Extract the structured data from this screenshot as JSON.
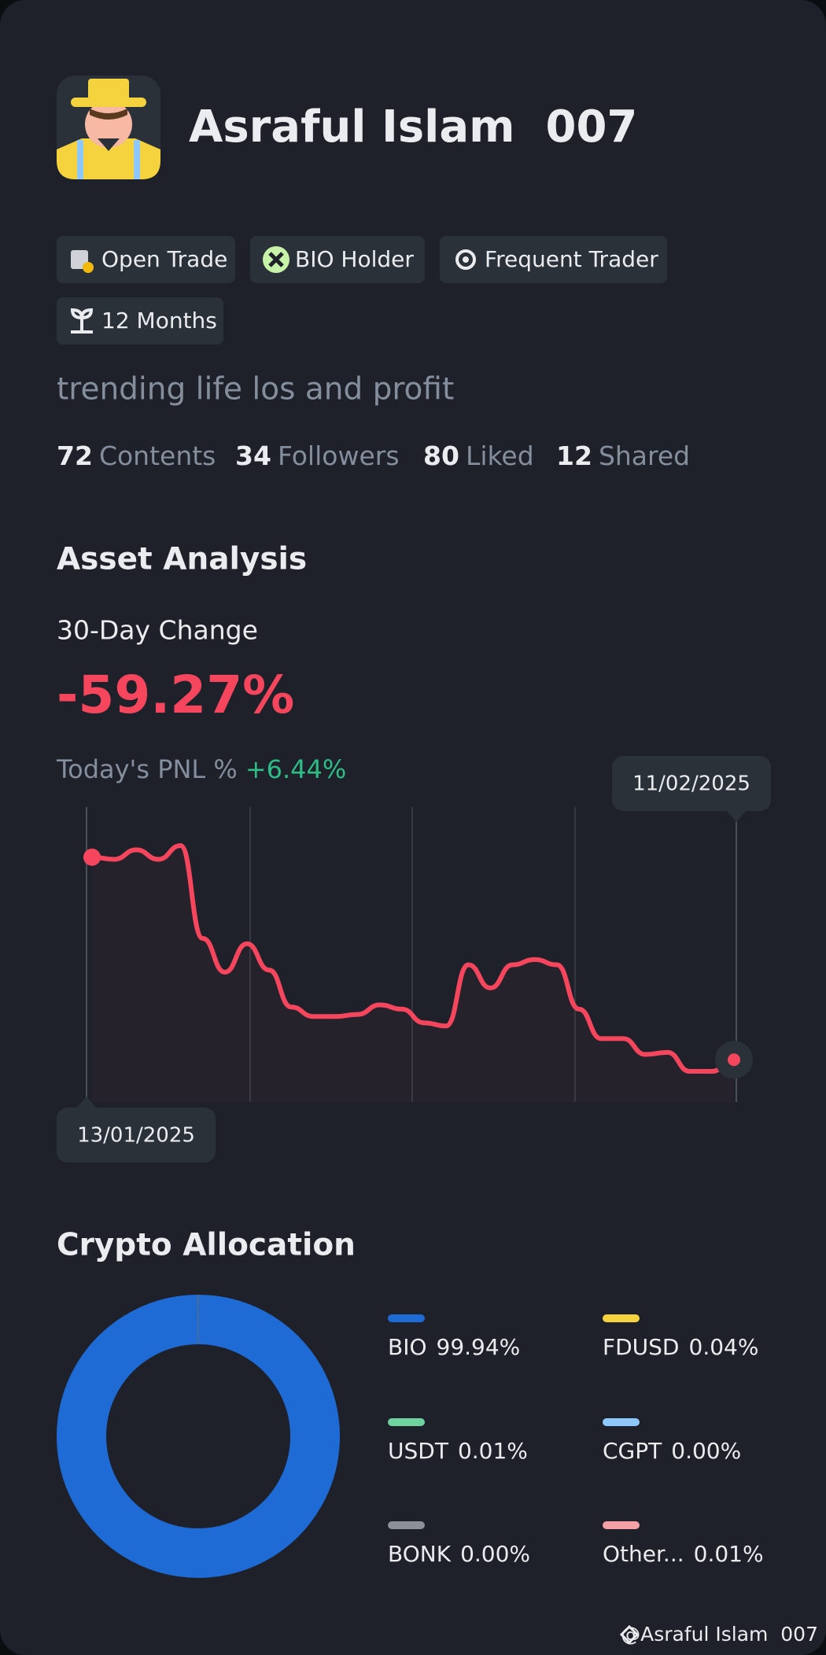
{
  "profile": {
    "name": "Asraful Islam  007",
    "tags": [
      "Open Trade",
      "BIO Holder",
      "Frequent Trader",
      "12 Months"
    ],
    "bio": "trending life los and profit",
    "stats": [
      {
        "value": 72,
        "label": "Contents"
      },
      {
        "value": 34,
        "label": "Followers"
      },
      {
        "value": 80,
        "label": "Liked"
      },
      {
        "value": 12,
        "label": "Shared"
      }
    ]
  },
  "asset_analysis": {
    "title": "Asset Analysis",
    "change_label": "30-Day Change",
    "change_value": "-59.27%",
    "pnl_label": "Today's PNL %",
    "pnl_value": "+6.44%",
    "chart": {
      "type": "line",
      "color": "#f6465d",
      "x": [
        "13/01/2025",
        null,
        null,
        null,
        null,
        null,
        null,
        null,
        null,
        null,
        null,
        null,
        null,
        null,
        null,
        null,
        null,
        null,
        null,
        null,
        null,
        null,
        null,
        null,
        null,
        null,
        null,
        null,
        null,
        "11/02/2025"
      ],
      "values": [
        0,
        -0.62,
        2.16,
        -0.62,
        3.4,
        -23.77,
        -33.65,
        -25.31,
        -33.03,
        -43.84,
        -46.61,
        -46.61,
        -46.0,
        -43.22,
        -44.45,
        -48.47,
        -49.39,
        -31.49,
        -38.28,
        -31.49,
        -29.94,
        -31.49,
        -44.45,
        -53.1,
        -53.1,
        -57.73,
        -57.11,
        -62.67,
        -62.67,
        -59.27
      ]
    }
  },
  "crypto_allocation": {
    "title": "Crypto Allocation",
    "chart": {
      "type": "donut",
      "series": [
        {
          "name": "BIO",
          "value": 99.94,
          "value_label": "99.94%",
          "color": "#1f6bd6"
        },
        {
          "name": "FDUSD",
          "value": 0.04,
          "value_label": "0.04%",
          "color": "#f5d33f"
        },
        {
          "name": "USDT",
          "value": 0.01,
          "value_label": "0.01%",
          "color": "#6fd3a0"
        },
        {
          "name": "CGPT",
          "value": 0,
          "value_label": "0.00%",
          "color": "#8fc7ff"
        },
        {
          "name": "BONK",
          "value": 0,
          "value_label": "0.00%",
          "color": "#8b9099"
        },
        {
          "name": "Other...",
          "value": 0.01,
          "value_label": "0.01%",
          "color": "#f4a0a6"
        }
      ]
    }
  },
  "watermark": "@Asraful Islam  007"
}
